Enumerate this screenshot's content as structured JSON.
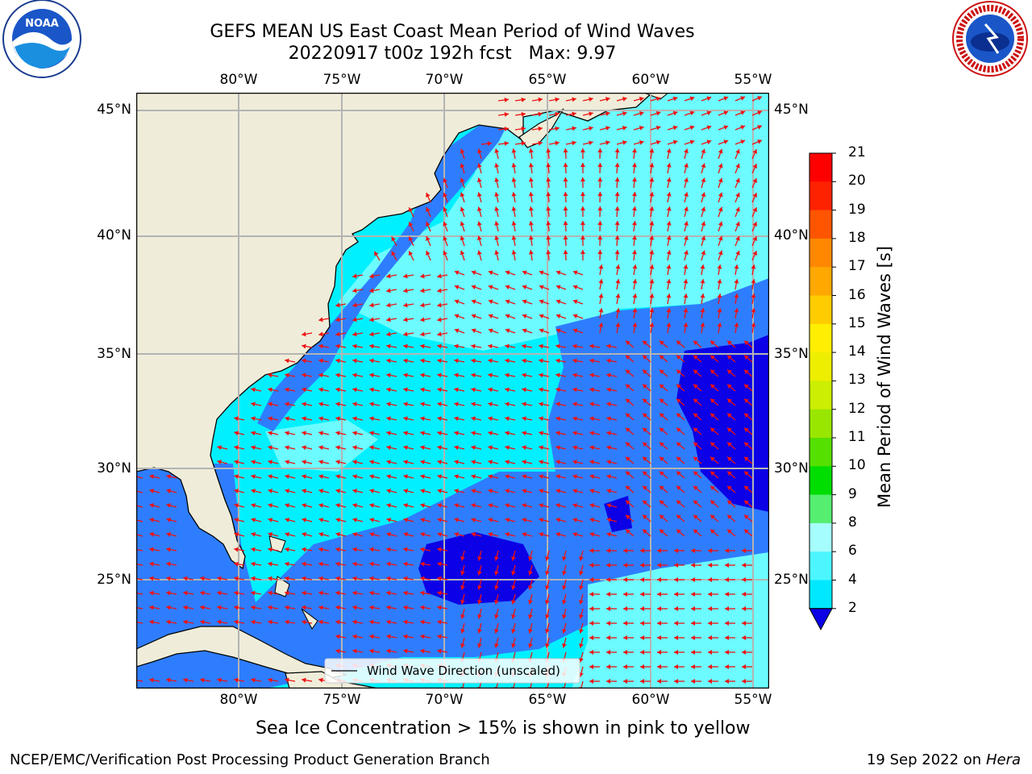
{
  "header": {
    "title_line1": "GEFS MEAN US East Coast Mean Period of Wind Waves",
    "title_line2": "20220917 t00z 192h fcst   Max: 9.97"
  },
  "logos": {
    "left": {
      "icon": "noaa-logo",
      "text": "NOAA"
    },
    "right": {
      "icon": "nws-logo",
      "text": "NATIONAL WEATHER SERVICE"
    }
  },
  "map": {
    "lon_ticks": [
      "80°W",
      "75°W",
      "70°W",
      "65°W",
      "60°W",
      "55°W"
    ],
    "lat_ticks": [
      "45°N",
      "40°N",
      "35°N",
      "30°N",
      "25°N"
    ],
    "legend_label": "Wind Wave Direction (unscaled)",
    "colors": {
      "land": "#efedd9",
      "arrow": "#ee1111",
      "grid": "#b4b4b4",
      "ocean_2_4": "#2f7dff",
      "ocean_4_6": "#00f0ff",
      "ocean_6_8": "#6cfcff",
      "ocean_lt2": "#0b00e6"
    }
  },
  "colorbar": {
    "label": "Mean Period of Wind Waves [s]",
    "ticks": [
      "2",
      "4",
      "6",
      "8",
      "9",
      "10",
      "11",
      "12",
      "13",
      "14",
      "15",
      "16",
      "17",
      "18",
      "19",
      "20",
      "21"
    ],
    "colors": [
      "#0060ff",
      "#00e8ff",
      "#4cf6ff",
      "#a6fdfd",
      "#55ee70",
      "#00dd00",
      "#55e000",
      "#99e600",
      "#ccee00",
      "#eeee00",
      "#ffee00",
      "#ffcc00",
      "#ffa800",
      "#ff8800",
      "#ff5500",
      "#ff2200",
      "#ff0000"
    ]
  },
  "footer": {
    "note": "Sea Ice Concentration > 15% is shown in pink to yellow",
    "left": "NCEP/EMC/Verification Post Processing Product Generation Branch",
    "date": "19 Sep 2022 on",
    "host": "Hera"
  }
}
